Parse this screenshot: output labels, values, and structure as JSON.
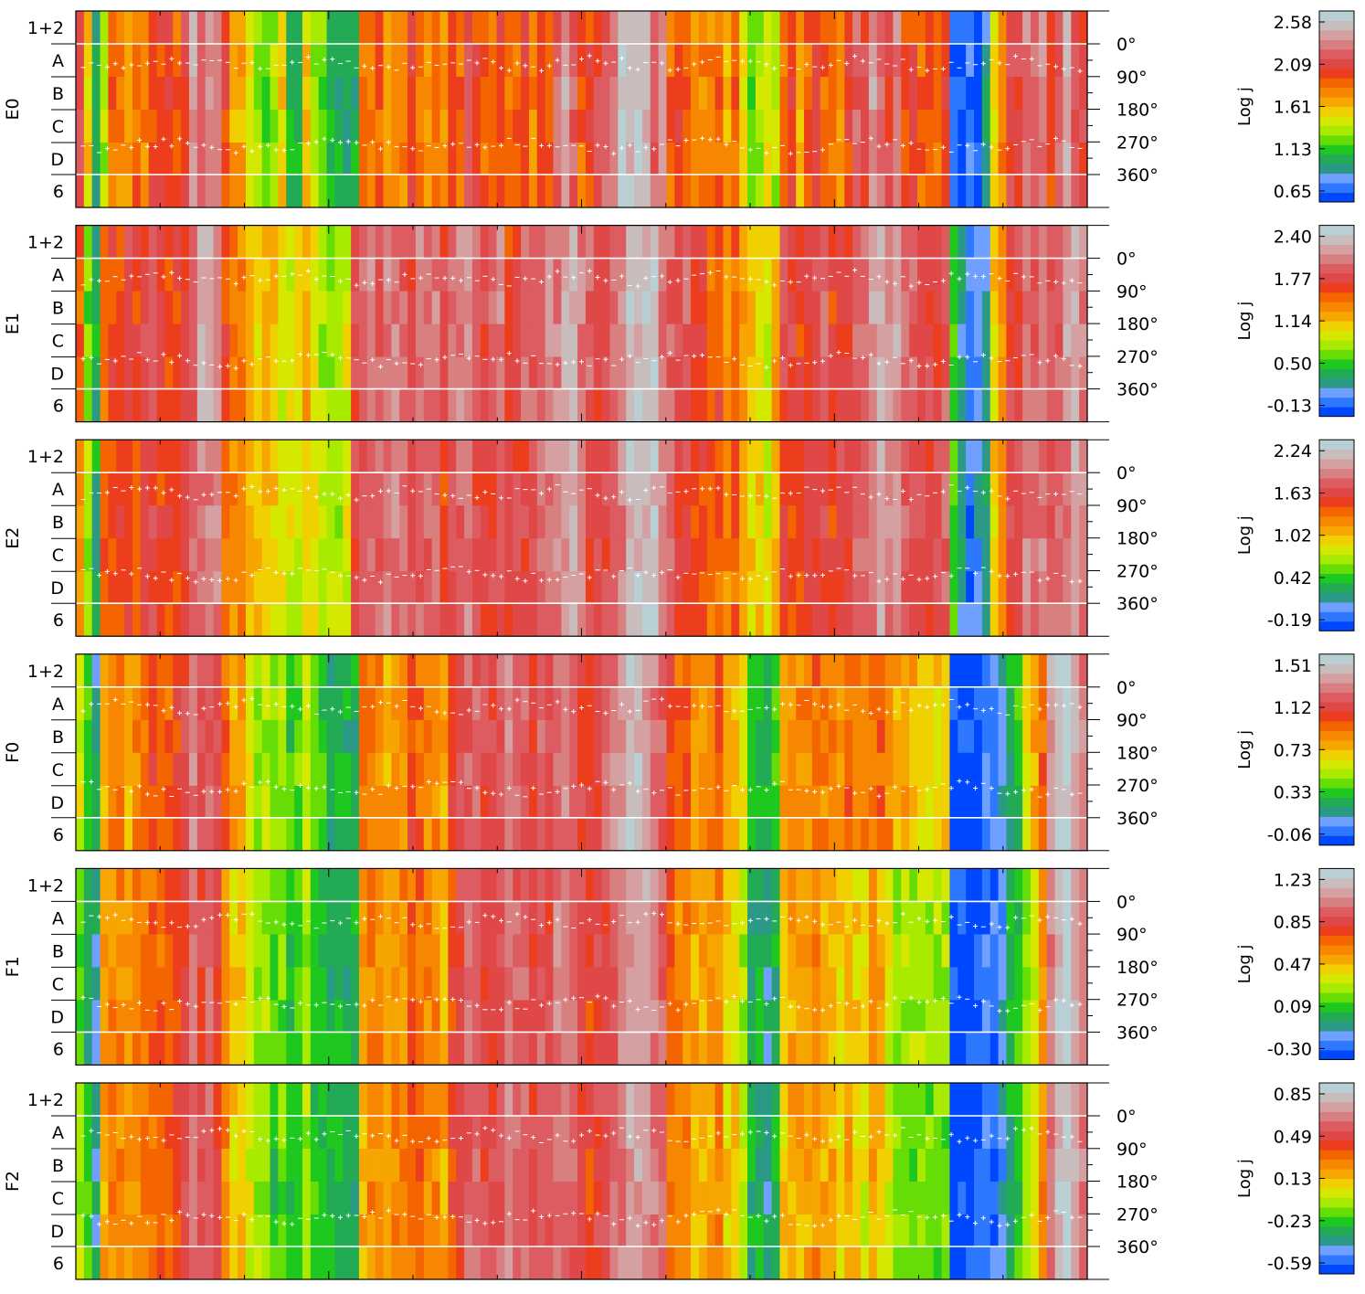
{
  "palette": [
    "#0048ff",
    "#2e78ff",
    "#6fa0ff",
    "#2a9a86",
    "#22aa55",
    "#1ec81e",
    "#66de06",
    "#a8ea00",
    "#d4e800",
    "#f0d000",
    "#f7a500",
    "#f78700",
    "#f46400",
    "#ec3e1c",
    "#e04848",
    "#dc5c62",
    "#d88080",
    "#d4a0a2",
    "#c8bcbc",
    "#b8d0d4"
  ],
  "chart_data": [
    {
      "type": "heatmap",
      "panel_label": "E0",
      "row_labels": [
        "1+2",
        "A",
        "B",
        "C",
        "D",
        "6"
      ],
      "y_ticks": [
        "0°",
        "90°",
        "180°",
        "270°",
        "360°"
      ],
      "colorbar_label": "Log j",
      "colorbar_ticks": [
        "2.58",
        "2.09",
        "1.61",
        "1.13",
        "0.65"
      ],
      "color_range": [
        0.65,
        2.58
      ],
      "grid": false,
      "column_levels": [
        15,
        9,
        4,
        7,
        12,
        11,
        10,
        12,
        11,
        13,
        13,
        13,
        12,
        14,
        17,
        15,
        16,
        16,
        13,
        10,
        10,
        8,
        7,
        6,
        7,
        9,
        4,
        5,
        9,
        7,
        6,
        4,
        4,
        4,
        4,
        12,
        11,
        12,
        10,
        11,
        11,
        13,
        12,
        11,
        12,
        10,
        13,
        12,
        15,
        13,
        12,
        12,
        13,
        12,
        12,
        13,
        11,
        13,
        12,
        15,
        17,
        15,
        12,
        13,
        14,
        15,
        16,
        18,
        18,
        18,
        18,
        15,
        17,
        12,
        13,
        12,
        11,
        11,
        11,
        12,
        10,
        12,
        9,
        6,
        7,
        8,
        7,
        12,
        13,
        10,
        12,
        14,
        12,
        12,
        11,
        13,
        15,
        14,
        17,
        15,
        14,
        16,
        13,
        13,
        12,
        12,
        12,
        13,
        1,
        0,
        1,
        0,
        3,
        9,
        11,
        14,
        14,
        16,
        15,
        16,
        13,
        15,
        17,
        15,
        14
      ]
    },
    {
      "type": "heatmap",
      "panel_label": "E1",
      "row_labels": [
        "1+2",
        "A",
        "B",
        "C",
        "D",
        "6"
      ],
      "y_ticks": [
        "0°",
        "90°",
        "180°",
        "270°",
        "360°"
      ],
      "colorbar_label": "Log j",
      "colorbar_ticks": [
        "2.40",
        "1.77",
        "1.14",
        "0.50",
        "-0.13"
      ],
      "color_range": [
        -0.13,
        2.4
      ],
      "grid": false,
      "column_levels": [
        12,
        6,
        4,
        12,
        13,
        13,
        14,
        13,
        14,
        15,
        14,
        13,
        13,
        14,
        15,
        17,
        17,
        16,
        13,
        11,
        11,
        10,
        9,
        10,
        9,
        8,
        8,
        9,
        10,
        8,
        7,
        7,
        7,
        8,
        14,
        15,
        16,
        15,
        16,
        16,
        15,
        14,
        16,
        15,
        16,
        14,
        15,
        16,
        17,
        15,
        14,
        15,
        16,
        13,
        14,
        15,
        15,
        15,
        17,
        16,
        17,
        18,
        16,
        15,
        14,
        14,
        15,
        16,
        18,
        18,
        18,
        18,
        16,
        15,
        14,
        15,
        13,
        13,
        12,
        13,
        11,
        12,
        10,
        9,
        9,
        8,
        10,
        14,
        14,
        13,
        14,
        14,
        15,
        13,
        14,
        14,
        15,
        15,
        17,
        17,
        16,
        17,
        15,
        15,
        14,
        14,
        14,
        15,
        5,
        3,
        1,
        2,
        3,
        9,
        11,
        14,
        14,
        16,
        15,
        16,
        15,
        15,
        17,
        17,
        16
      ]
    },
    {
      "type": "heatmap",
      "panel_label": "E2",
      "row_labels": [
        "1+2",
        "A",
        "B",
        "C",
        "D",
        "6"
      ],
      "y_ticks": [
        "0°",
        "90°",
        "180°",
        "270°",
        "360°"
      ],
      "colorbar_label": "Log j",
      "colorbar_ticks": [
        "2.24",
        "1.63",
        "1.02",
        "0.42",
        "-0.19"
      ],
      "color_range": [
        -0.19,
        2.24
      ],
      "grid": false,
      "column_levels": [
        11,
        7,
        4,
        12,
        13,
        13,
        13,
        12,
        14,
        14,
        13,
        13,
        13,
        14,
        15,
        16,
        16,
        16,
        12,
        11,
        11,
        10,
        9,
        9,
        9,
        8,
        8,
        8,
        9,
        8,
        7,
        7,
        7,
        8,
        14,
        15,
        15,
        15,
        16,
        16,
        15,
        14,
        15,
        15,
        15,
        13,
        14,
        15,
        16,
        14,
        14,
        14,
        15,
        13,
        14,
        14,
        14,
        15,
        16,
        16,
        17,
        18,
        16,
        14,
        14,
        14,
        15,
        16,
        18,
        18,
        18,
        18,
        16,
        15,
        14,
        14,
        13,
        13,
        12,
        12,
        11,
        12,
        10,
        9,
        9,
        8,
        10,
        13,
        13,
        13,
        14,
        14,
        14,
        13,
        14,
        14,
        15,
        15,
        16,
        17,
        16,
        17,
        15,
        15,
        14,
        14,
        14,
        15,
        5,
        3,
        1,
        2,
        3,
        9,
        11,
        14,
        14,
        16,
        15,
        16,
        15,
        15,
        16,
        17,
        16
      ]
    },
    {
      "type": "heatmap",
      "panel_label": "F0",
      "row_labels": [
        "1+2",
        "A",
        "B",
        "C",
        "D",
        "6"
      ],
      "y_ticks": [
        "0°",
        "90°",
        "180°",
        "270°",
        "360°"
      ],
      "colorbar_label": "Log j",
      "colorbar_ticks": [
        "1.51",
        "1.12",
        "0.73",
        "0.33",
        "-0.06"
      ],
      "color_range": [
        -0.06,
        1.51
      ],
      "grid": false,
      "column_levels": [
        8,
        5,
        3,
        10,
        11,
        11,
        10,
        11,
        12,
        13,
        12,
        12,
        13,
        14,
        16,
        14,
        15,
        14,
        12,
        10,
        10,
        8,
        7,
        7,
        6,
        7,
        5,
        6,
        8,
        6,
        5,
        4,
        4,
        4,
        4,
        11,
        11,
        11,
        10,
        11,
        11,
        13,
        12,
        11,
        11,
        10,
        13,
        14,
        15,
        15,
        14,
        14,
        15,
        16,
        15,
        15,
        14,
        15,
        14,
        16,
        16,
        15,
        14,
        13,
        14,
        15,
        16,
        17,
        18,
        18,
        17,
        16,
        15,
        13,
        12,
        12,
        11,
        11,
        11,
        12,
        10,
        10,
        8,
        5,
        5,
        4,
        5,
        10,
        11,
        11,
        11,
        12,
        11,
        11,
        11,
        12,
        11,
        11,
        12,
        12,
        11,
        10,
        10,
        10,
        9,
        9,
        9,
        9,
        0,
        0,
        0,
        0,
        1,
        1,
        2,
        4,
        5,
        8,
        10,
        12,
        17,
        18,
        19,
        17,
        16
      ]
    },
    {
      "type": "heatmap",
      "panel_label": "F1",
      "row_labels": [
        "1+2",
        "A",
        "B",
        "C",
        "D",
        "6"
      ],
      "y_ticks": [
        "0°",
        "90°",
        "180°",
        "270°",
        "360°"
      ],
      "colorbar_label": "Log j",
      "colorbar_ticks": [
        "1.23",
        "0.85",
        "0.47",
        "0.09",
        "-0.30"
      ],
      "color_range": [
        -0.3,
        1.23
      ],
      "grid": false,
      "column_levels": [
        6,
        4,
        3,
        10,
        11,
        11,
        10,
        11,
        12,
        12,
        12,
        12,
        13,
        14,
        16,
        14,
        15,
        14,
        11,
        9,
        9,
        8,
        7,
        7,
        5,
        6,
        5,
        5,
        7,
        5,
        5,
        4,
        4,
        4,
        4,
        10,
        11,
        11,
        10,
        11,
        11,
        12,
        12,
        11,
        11,
        10,
        13,
        14,
        15,
        15,
        14,
        14,
        15,
        16,
        15,
        15,
        14,
        15,
        14,
        16,
        16,
        15,
        14,
        13,
        14,
        14,
        15,
        16,
        17,
        17,
        17,
        16,
        15,
        12,
        11,
        11,
        10,
        10,
        10,
        11,
        9,
        9,
        7,
        4,
        4,
        3,
        4,
        9,
        10,
        10,
        10,
        11,
        10,
        10,
        9,
        10,
        9,
        9,
        11,
        10,
        8,
        7,
        7,
        7,
        7,
        7,
        7,
        7,
        0,
        0,
        0,
        0,
        1,
        1,
        2,
        4,
        5,
        7,
        8,
        11,
        16,
        18,
        19,
        17,
        16
      ]
    },
    {
      "type": "heatmap",
      "panel_label": "F2",
      "row_labels": [
        "1+2",
        "A",
        "B",
        "C",
        "D",
        "6"
      ],
      "y_ticks": [
        "0°",
        "90°",
        "180°",
        "270°",
        "360°"
      ],
      "colorbar_label": "Log j",
      "colorbar_ticks": [
        "0.85",
        "0.49",
        "0.13",
        "-0.23",
        "-0.59"
      ],
      "color_range": [
        -0.59,
        0.85
      ],
      "grid": false,
      "column_levels": [
        7,
        5,
        3,
        10,
        11,
        11,
        10,
        11,
        12,
        12,
        12,
        12,
        13,
        14,
        16,
        14,
        15,
        14,
        11,
        9,
        9,
        8,
        7,
        7,
        5,
        6,
        5,
        5,
        7,
        5,
        5,
        4,
        4,
        4,
        4,
        10,
        11,
        11,
        10,
        11,
        11,
        12,
        12,
        11,
        11,
        10,
        13,
        14,
        15,
        15,
        14,
        14,
        15,
        16,
        15,
        15,
        14,
        15,
        14,
        16,
        16,
        15,
        14,
        13,
        14,
        14,
        15,
        16,
        17,
        17,
        17,
        16,
        15,
        12,
        11,
        11,
        10,
        10,
        10,
        11,
        9,
        9,
        7,
        4,
        4,
        3,
        4,
        9,
        10,
        10,
        10,
        11,
        10,
        10,
        9,
        10,
        9,
        8,
        10,
        9,
        8,
        7,
        6,
        6,
        6,
        6,
        6,
        6,
        0,
        0,
        0,
        0,
        1,
        1,
        2,
        4,
        5,
        7,
        8,
        11,
        16,
        18,
        19,
        17,
        16
      ]
    }
  ]
}
